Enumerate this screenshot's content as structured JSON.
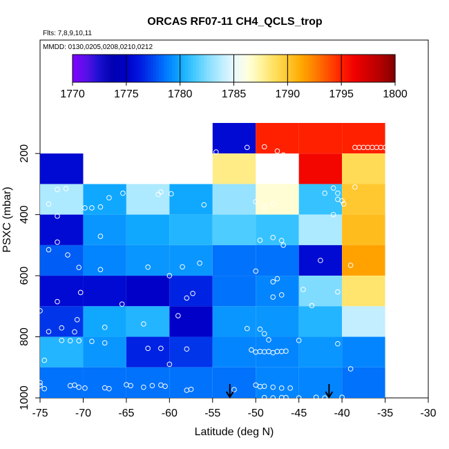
{
  "chart_data": {
    "type": "heatmap",
    "title": "ORCAS RF07-11 CH4_QCLS_trop",
    "subtitle_flights": "Flts: 7,8,9,10,11",
    "subtitle_dates": "MMDD: 0130,0205,0208,0210,0212",
    "xlabel": "Latitude (deg N)",
    "ylabel": "PSXC (mbar)",
    "xlim": [
      -75,
      -30
    ],
    "ylim": [
      1000,
      100
    ],
    "x_ticks": [
      -75,
      -70,
      -65,
      -60,
      -55,
      -50,
      -45,
      -40,
      -35,
      -30
    ],
    "x_tick_labels": [
      "-75",
      "-70",
      "-65",
      "-60",
      "-55",
      "-50",
      "-45",
      "-40",
      "-35",
      "-30"
    ],
    "y_ticks": [
      200,
      400,
      600,
      800,
      1000
    ],
    "y_tick_labels": [
      "200",
      "400",
      "600",
      "800",
      "1000"
    ],
    "colorbar": {
      "range": [
        1770,
        1800
      ],
      "ticks": [
        1770,
        1775,
        1780,
        1785,
        1790,
        1795,
        1800
      ],
      "tick_labels": [
        "1770",
        "1775",
        "1780",
        "1785",
        "1790",
        "1795",
        "1800"
      ],
      "colors": [
        "#7f00ff",
        "#5a10e8",
        "#1a10d0",
        "#0000b0",
        "#0000c8",
        "#0018e0",
        "#0048f0",
        "#007cff",
        "#10a8ff",
        "#40c8ff",
        "#80dcff",
        "#b8ecff",
        "#e8f8ff",
        "#ffffe0",
        "#fff4a0",
        "#ffe060",
        "#ffc830",
        "#ffaa00",
        "#ff8000",
        "#ff5000",
        "#ff2000",
        "#f00000",
        "#d00000",
        "#b00000",
        "#800000"
      ]
    },
    "x_bin_edges": [
      -75,
      -70,
      -65,
      -60,
      -55,
      -50,
      -45,
      -40,
      -35
    ],
    "y_bin_edges": [
      100,
      200,
      300,
      400,
      500,
      600,
      700,
      800,
      900,
      1000
    ],
    "cells": [
      [
        null,
        null,
        null,
        null,
        1775.5,
        1795,
        1795,
        1795
      ],
      [
        1775.5,
        null,
        null,
        null,
        1788,
        null,
        1796,
        1789
      ],
      [
        1783.5,
        1780,
        1783.5,
        1780,
        1783,
        1786.5,
        1781,
        1790
      ],
      [
        1775.5,
        1779.5,
        1780,
        1780.5,
        1781.5,
        1781,
        1783.5,
        1790.5
      ],
      [
        1778,
        1779,
        1779.5,
        1779.5,
        1778.5,
        1778.5,
        1775.5,
        1791.5
      ],
      [
        1775.5,
        1775.5,
        1775,
        1776.5,
        1778.5,
        1779,
        1782.5,
        1788.5
      ],
      [
        1777,
        1780,
        1780.5,
        1775,
        1779.5,
        1779.5,
        1780.5,
        1784
      ],
      [
        1780.5,
        1779.5,
        1776.5,
        1777,
        1779,
        1779,
        1779.5,
        1779
      ],
      [
        1778.5,
        1778.5,
        1778.5,
        1778.5,
        1778.5,
        1779,
        1779,
        1778.5
      ]
    ],
    "points": [
      [
        -54.6,
        195
      ],
      [
        -51,
        180
      ],
      [
        -49,
        178
      ],
      [
        -47.5,
        192
      ],
      [
        -46.8,
        205
      ],
      [
        -38.5,
        180
      ],
      [
        -38,
        180
      ],
      [
        -37.5,
        180
      ],
      [
        -37,
        180
      ],
      [
        -36.5,
        180
      ],
      [
        -36,
        180
      ],
      [
        -35.5,
        180
      ],
      [
        -35,
        180
      ],
      [
        -73,
        318
      ],
      [
        -72,
        315
      ],
      [
        -74,
        365
      ],
      [
        -69.8,
        378
      ],
      [
        -69,
        378
      ],
      [
        -68,
        375
      ],
      [
        -67,
        345
      ],
      [
        -65.4,
        330
      ],
      [
        -61.3,
        334
      ],
      [
        -61,
        326
      ],
      [
        -59.8,
        332
      ],
      [
        -56,
        368
      ],
      [
        -50,
        358
      ],
      [
        -49,
        375
      ],
      [
        -48,
        365
      ],
      [
        -42,
        330
      ],
      [
        -41,
        313
      ],
      [
        -40.5,
        330
      ],
      [
        -40.5,
        350
      ],
      [
        -40,
        355
      ],
      [
        -39.8,
        365
      ],
      [
        -38.5,
        310
      ],
      [
        -41,
        400
      ],
      [
        -73,
        405
      ],
      [
        -74,
        515
      ],
      [
        -73,
        490
      ],
      [
        -71.8,
        532
      ],
      [
        -68,
        471
      ],
      [
        -49.5,
        484
      ],
      [
        -48,
        475
      ],
      [
        -47,
        485
      ],
      [
        -46.8,
        500
      ],
      [
        -70.5,
        573
      ],
      [
        -68,
        580
      ],
      [
        -62.5,
        572
      ],
      [
        -60,
        600
      ],
      [
        -58.5,
        571
      ],
      [
        -56.5,
        559
      ],
      [
        -50,
        585
      ],
      [
        -48,
        620
      ],
      [
        -47.5,
        610
      ],
      [
        -42.5,
        550
      ],
      [
        -39,
        566
      ],
      [
        -75,
        715
      ],
      [
        -73,
        685
      ],
      [
        -70.3,
        655
      ],
      [
        -65.5,
        693
      ],
      [
        -58,
        673
      ],
      [
        -57.3,
        658
      ],
      [
        -48,
        670
      ],
      [
        -47,
        663
      ],
      [
        -44.5,
        645
      ],
      [
        -43.5,
        698
      ],
      [
        -40.5,
        653
      ],
      [
        -74,
        783
      ],
      [
        -72.5,
        771
      ],
      [
        -70.7,
        744
      ],
      [
        -71,
        784
      ],
      [
        -67.5,
        769
      ],
      [
        -63,
        758
      ],
      [
        -59,
        731
      ],
      [
        -51,
        773
      ],
      [
        -49.5,
        775
      ],
      [
        -49,
        790
      ],
      [
        -48.5,
        810
      ],
      [
        -72.5,
        812
      ],
      [
        -71.5,
        813
      ],
      [
        -70.5,
        813
      ],
      [
        -69,
        815
      ],
      [
        -67.5,
        820
      ],
      [
        -62.5,
        838
      ],
      [
        -61,
        838
      ],
      [
        -60,
        890
      ],
      [
        -58,
        840
      ],
      [
        -50.5,
        843
      ],
      [
        -50,
        850
      ],
      [
        -49.5,
        848
      ],
      [
        -49,
        849
      ],
      [
        -48.5,
        848
      ],
      [
        -48,
        852
      ],
      [
        -47.5,
        848
      ],
      [
        -47,
        848
      ],
      [
        -46.5,
        847
      ],
      [
        -45,
        812
      ],
      [
        -40.5,
        823
      ],
      [
        -39,
        905
      ],
      [
        -74.5,
        877
      ],
      [
        -75,
        950
      ],
      [
        -75,
        960
      ],
      [
        -74.5,
        970
      ],
      [
        -71.5,
        960
      ],
      [
        -71,
        958
      ],
      [
        -70.5,
        965
      ],
      [
        -69.8,
        968
      ],
      [
        -67.5,
        967
      ],
      [
        -67,
        970
      ],
      [
        -65,
        957
      ],
      [
        -64.5,
        960
      ],
      [
        -63,
        965
      ],
      [
        -62,
        960
      ],
      [
        -61,
        958
      ],
      [
        -60.5,
        962
      ],
      [
        -58,
        975
      ],
      [
        -57.5,
        972
      ],
      [
        -52.5,
        973
      ],
      [
        -50,
        958
      ],
      [
        -49.5,
        963
      ],
      [
        -49,
        962
      ],
      [
        -48,
        965
      ],
      [
        -47,
        968
      ],
      [
        -46,
        968
      ],
      [
        -49,
        999
      ],
      [
        -48,
        1000
      ],
      [
        -47,
        999
      ],
      [
        -46.5,
        999
      ],
      [
        -45,
        1000
      ],
      [
        -43,
        998
      ],
      [
        -42,
        1000
      ],
      [
        -40,
        998
      ]
    ],
    "arrows": [
      -53,
      -41.5
    ]
  }
}
